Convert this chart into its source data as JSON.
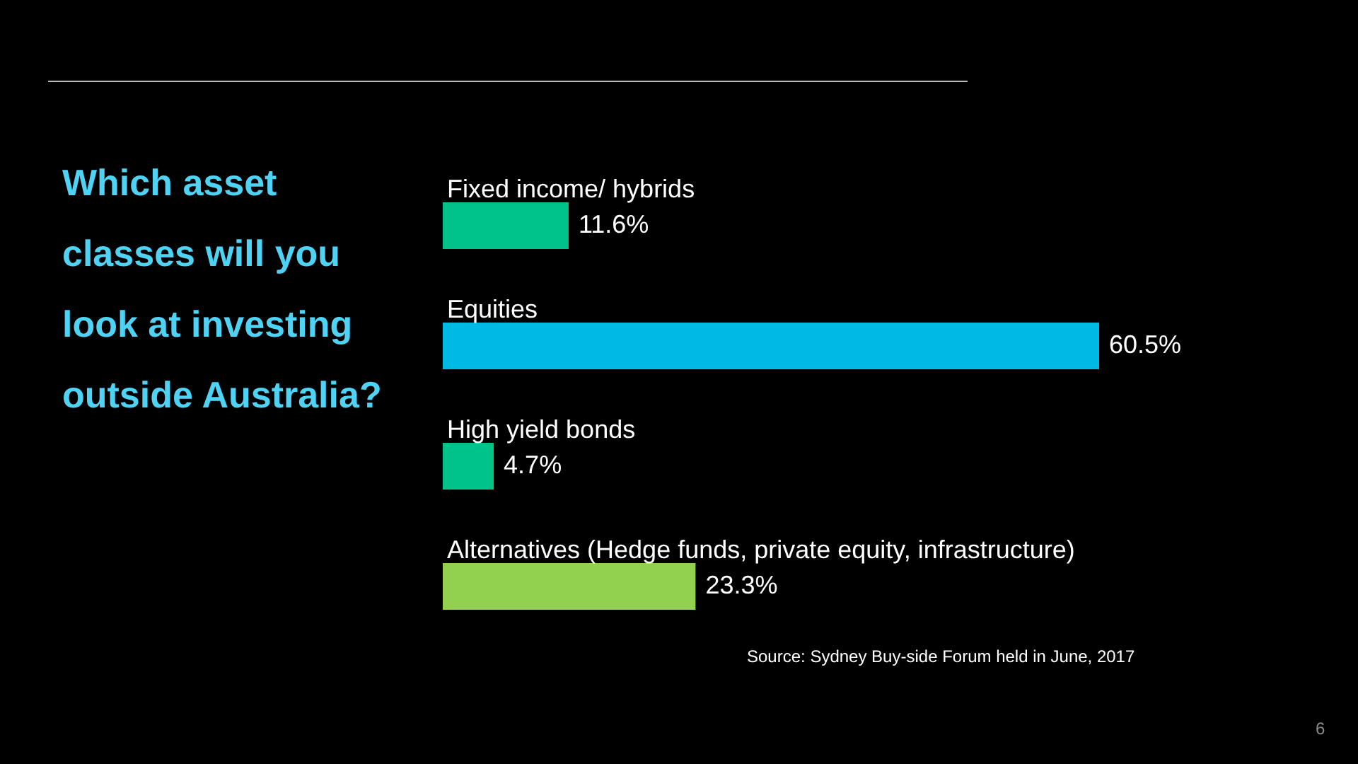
{
  "chart_data": {
    "type": "bar",
    "orientation": "horizontal",
    "title": "Which asset classes will you look at investing outside Australia?",
    "categories": [
      "Fixed income/ hybrids",
      "Equities",
      "High  yield bonds",
      "Alternatives (Hedge funds, private equity, infrastructure)"
    ],
    "values": [
      11.6,
      60.5,
      4.7,
      23.3
    ],
    "value_labels": [
      "11.6%",
      "60.5%",
      "4.7%",
      "23.3%"
    ],
    "colors": [
      "#00c389",
      "#00b9e4",
      "#00c389",
      "#92d050"
    ],
    "annotations": [
      "Source: Sydney Buy-side Forum held in June, 2017",
      "6"
    ]
  }
}
